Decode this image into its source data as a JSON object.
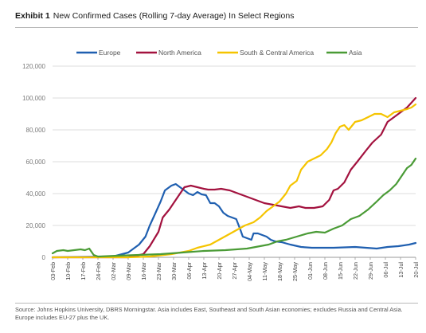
{
  "header": {
    "exhibit_label": "Exhibit 1",
    "title": "New Confirmed Cases (Rolling 7-day Average) In Select Regions"
  },
  "footer": {
    "source_line1": "Source: Johns Hopkins University, DBRS Morningstar. Asia includes East, Southeast and South Asian economies; excludes Russia and Central Asia.",
    "source_line2": "Europe includes EU-27 plus the UK."
  },
  "chart_data": {
    "type": "line",
    "title": "New Confirmed Cases (Rolling 7-day Average) In Select Regions",
    "xlabel": "",
    "ylabel": "",
    "ylim": [
      0,
      120000
    ],
    "yticks": [
      0,
      20000,
      40000,
      60000,
      80000,
      100000,
      120000
    ],
    "ytick_labels": [
      "0",
      "20,000",
      "40,000",
      "60,000",
      "80,000",
      "100,000",
      "120,000"
    ],
    "xlim": [
      "03-Feb",
      "20-Jul"
    ],
    "x_tick_labels": [
      "03-Feb",
      "10-Feb",
      "17-Feb",
      "24-Feb",
      "02-Mar",
      "09-Mar",
      "16-Mar",
      "23-Mar",
      "30-Mar",
      "06-Apr",
      "13-Apr",
      "20-Apr",
      "27-Apr",
      "04-May",
      "11-May",
      "18-May",
      "25-May",
      "01-Jun",
      "08-Jun",
      "15-Jun",
      "22-Jun",
      "29-Jun",
      "06-Jul",
      "13-Jul",
      "20-Jul"
    ],
    "grid": "horizontal",
    "legend_position": "top",
    "x_unit": "days",
    "series": [
      {
        "name": "Europe",
        "color": "#1f5fb0",
        "points": [
          [
            0,
            0
          ],
          [
            28,
            500
          ],
          [
            35,
            3000
          ],
          [
            40,
            8000
          ],
          [
            43,
            13000
          ],
          [
            45,
            20000
          ],
          [
            47,
            26000
          ],
          [
            50,
            35000
          ],
          [
            52,
            42000
          ],
          [
            55,
            45000
          ],
          [
            57,
            46000
          ],
          [
            59,
            44000
          ],
          [
            61,
            42000
          ],
          [
            63,
            40000
          ],
          [
            65,
            39000
          ],
          [
            67,
            41000
          ],
          [
            69,
            39500
          ],
          [
            71,
            39000
          ],
          [
            73,
            34000
          ],
          [
            75,
            34000
          ],
          [
            77,
            32000
          ],
          [
            79,
            28000
          ],
          [
            81,
            26000
          ],
          [
            83,
            25000
          ],
          [
            85,
            24000
          ],
          [
            87,
            17000
          ],
          [
            88,
            13000
          ],
          [
            90,
            12000
          ],
          [
            92,
            11000
          ],
          [
            93,
            15000
          ],
          [
            95,
            15000
          ],
          [
            97,
            14000
          ],
          [
            99,
            13000
          ],
          [
            101,
            11000
          ],
          [
            103,
            10000
          ],
          [
            106,
            9500
          ],
          [
            110,
            8000
          ],
          [
            115,
            6500
          ],
          [
            120,
            6000
          ],
          [
            125,
            6000
          ],
          [
            130,
            6000
          ],
          [
            140,
            6500
          ],
          [
            150,
            5500
          ],
          [
            155,
            6500
          ],
          [
            160,
            7000
          ],
          [
            165,
            8000
          ],
          [
            168,
            9000
          ]
        ]
      },
      {
        "name": "North America",
        "color": "#a3123f",
        "points": [
          [
            0,
            0
          ],
          [
            35,
            0
          ],
          [
            42,
            2000
          ],
          [
            45,
            7000
          ],
          [
            49,
            16000
          ],
          [
            51,
            25000
          ],
          [
            54,
            30000
          ],
          [
            58,
            38000
          ],
          [
            61,
            44000
          ],
          [
            64,
            45000
          ],
          [
            67,
            44000
          ],
          [
            70,
            43000
          ],
          [
            72,
            42500
          ],
          [
            75,
            42500
          ],
          [
            78,
            43000
          ],
          [
            82,
            42000
          ],
          [
            86,
            40000
          ],
          [
            90,
            38000
          ],
          [
            94,
            36000
          ],
          [
            98,
            34000
          ],
          [
            102,
            33000
          ],
          [
            106,
            32000
          ],
          [
            110,
            31000
          ],
          [
            114,
            32000
          ],
          [
            117,
            31000
          ],
          [
            121,
            31000
          ],
          [
            125,
            32000
          ],
          [
            128,
            36000
          ],
          [
            130,
            42000
          ],
          [
            132,
            43000
          ],
          [
            135,
            47000
          ],
          [
            138,
            55000
          ],
          [
            141,
            60000
          ],
          [
            145,
            67000
          ],
          [
            148,
            72000
          ],
          [
            152,
            77000
          ],
          [
            155,
            85000
          ],
          [
            158,
            88000
          ],
          [
            161,
            91000
          ],
          [
            164,
            94000
          ],
          [
            166,
            97000
          ],
          [
            168,
            100000
          ]
        ]
      },
      {
        "name": "South & Central America",
        "color": "#f5c400",
        "points": [
          [
            0,
            0
          ],
          [
            35,
            0
          ],
          [
            45,
            500
          ],
          [
            55,
            2000
          ],
          [
            63,
            4000
          ],
          [
            67,
            6000
          ],
          [
            73,
            8000
          ],
          [
            77,
            11000
          ],
          [
            81,
            14000
          ],
          [
            85,
            17000
          ],
          [
            89,
            20000
          ],
          [
            93,
            22000
          ],
          [
            96,
            25000
          ],
          [
            99,
            29000
          ],
          [
            102,
            32000
          ],
          [
            105,
            35000
          ],
          [
            108,
            40000
          ],
          [
            110,
            45000
          ],
          [
            113,
            48000
          ],
          [
            115,
            55000
          ],
          [
            118,
            60000
          ],
          [
            121,
            62000
          ],
          [
            124,
            64000
          ],
          [
            127,
            68000
          ],
          [
            129,
            72000
          ],
          [
            131,
            78000
          ],
          [
            133,
            82000
          ],
          [
            135,
            83000
          ],
          [
            137,
            80000
          ],
          [
            140,
            85000
          ],
          [
            143,
            86000
          ],
          [
            146,
            88000
          ],
          [
            149,
            90000
          ],
          [
            152,
            90000
          ],
          [
            155,
            88000
          ],
          [
            158,
            91000
          ],
          [
            161,
            92000
          ],
          [
            164,
            93000
          ],
          [
            166,
            94000
          ],
          [
            168,
            96000
          ]
        ]
      },
      {
        "name": "Asia",
        "color": "#4a9b36",
        "points": [
          [
            0,
            2500
          ],
          [
            2,
            4000
          ],
          [
            5,
            4500
          ],
          [
            7,
            4000
          ],
          [
            10,
            4500
          ],
          [
            13,
            5000
          ],
          [
            15,
            4500
          ],
          [
            17,
            5500
          ],
          [
            19,
            1500
          ],
          [
            21,
            500
          ],
          [
            30,
            1000
          ],
          [
            40,
            1500
          ],
          [
            50,
            2000
          ],
          [
            55,
            2500
          ],
          [
            60,
            3000
          ],
          [
            70,
            4000
          ],
          [
            80,
            4500
          ],
          [
            90,
            5500
          ],
          [
            100,
            8000
          ],
          [
            104,
            10000
          ],
          [
            108,
            11000
          ],
          [
            113,
            13000
          ],
          [
            118,
            15000
          ],
          [
            122,
            16000
          ],
          [
            126,
            15500
          ],
          [
            130,
            18000
          ],
          [
            134,
            20000
          ],
          [
            138,
            24000
          ],
          [
            142,
            26000
          ],
          [
            146,
            30000
          ],
          [
            150,
            35000
          ],
          [
            153,
            39000
          ],
          [
            156,
            42000
          ],
          [
            159,
            46000
          ],
          [
            162,
            52000
          ],
          [
            164,
            56000
          ],
          [
            166,
            58000
          ],
          [
            168,
            62000
          ]
        ]
      }
    ]
  }
}
